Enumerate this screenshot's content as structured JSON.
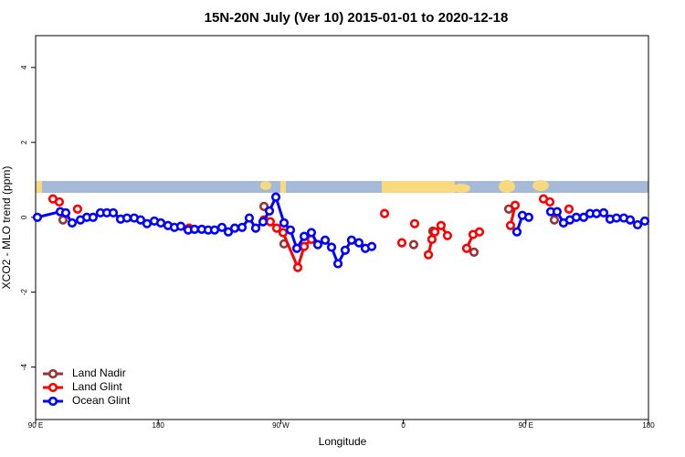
{
  "chart_data": {
    "type": "line",
    "title": "15N-20N July (Ver 10)   2015-01-01 to 2020-12-18",
    "x_label": "Longitude",
    "y_label": "XCO2 - MLO trend (ppm)",
    "xlim": [
      90,
      540
    ],
    "ylim": [
      -5.4,
      4.85
    ],
    "xticks": [
      {
        "value": 90,
        "label": "90 E"
      },
      {
        "value": 180,
        "label": "180"
      },
      {
        "value": 270,
        "label": "90 W"
      },
      {
        "value": 360,
        "label": "0"
      },
      {
        "value": 450,
        "label": "90 E"
      },
      {
        "value": 540,
        "label": "180"
      }
    ],
    "yticks": [
      -4,
      -2,
      0,
      2,
      4
    ],
    "legend": "bottomleft",
    "series": [
      {
        "name": "Land Nadir",
        "color": "#993333",
        "x": [
          110.1,
          null,
          257.7,
          null,
          272.4,
          null,
          367.6,
          null,
          381.7,
          null,
          411.9,
          null,
          437.4,
          null,
          470.9
        ],
        "values": [
          -0.07,
          null,
          0.29,
          null,
          -0.71,
          null,
          -0.73,
          null,
          -0.37,
          null,
          -0.93,
          null,
          0.22,
          null,
          -0.07
        ]
      },
      {
        "name": "Land Glint",
        "color": "#ff0000",
        "x": [
          102.7,
          107.4,
          null,
          120.8,
          null,
          202.7,
          null,
          257.7,
          262.3,
          267.0,
          271.7,
          282.5,
          287.2,
          292.5,
          null,
          346.2,
          null,
          358.9,
          null,
          368.3,
          null,
          378.4,
          381.0,
          383.1,
          387.7,
          392.4,
          null,
          406.5,
          411.2,
          415.9,
          null,
          438.7,
          442.1,
          null,
          462.9,
          467.6,
          null,
          481.6
        ],
        "values": [
          0.49,
          0.41,
          null,
          0.22,
          null,
          -0.29,
          null,
          -0.07,
          -0.12,
          -0.29,
          -0.41,
          -1.34,
          -0.78,
          -0.59,
          null,
          0.1,
          null,
          -0.68,
          null,
          -0.17,
          null,
          -1.0,
          -0.59,
          -0.39,
          -0.22,
          -0.49,
          null,
          -0.83,
          -0.46,
          -0.39,
          null,
          -0.22,
          0.32,
          null,
          0.49,
          0.41,
          null,
          0.22
        ]
      },
      {
        "name": "Ocean Glint",
        "color": "#0000ff",
        "x": [
          91.3,
          108.1,
          112.1,
          116.8,
          122.9,
          127.6,
          132.2,
          137.6,
          142.3,
          147.0,
          152.4,
          157.1,
          162.4,
          167.1,
          171.8,
          177.2,
          181.9,
          187.2,
          191.9,
          196.6,
          202.0,
          206.7,
          212.0,
          216.7,
          221.4,
          226.8,
          231.5,
          236.2,
          241.6,
          246.9,
          251.6,
          257.0,
          261.7,
          266.4,
          272.4,
          277.1,
          281.8,
          287.2,
          292.5,
          297.2,
          302.6,
          307.3,
          312.0,
          317.3,
          322.0,
          327.4,
          332.1,
          336.8,
          null,
          443.4,
          447.4,
          452.1,
          null,
          468.2,
          472.9,
          477.6,
          482.3,
          487.0,
          492.4,
          497.1,
          501.8,
          507.1,
          511.8,
          516.5,
          521.9,
          526.6,
          532.0,
          537.3
        ],
        "values": [
          0.0,
          0.15,
          0.12,
          -0.15,
          -0.07,
          0.0,
          0.0,
          0.12,
          0.12,
          0.12,
          -0.05,
          -0.02,
          -0.02,
          -0.07,
          -0.17,
          -0.1,
          -0.15,
          -0.22,
          -0.27,
          -0.24,
          -0.34,
          -0.32,
          -0.32,
          -0.34,
          -0.34,
          -0.27,
          -0.39,
          -0.29,
          -0.27,
          -0.02,
          -0.29,
          -0.12,
          0.17,
          0.54,
          -0.15,
          -0.34,
          -0.83,
          -0.51,
          -0.41,
          -0.73,
          -0.61,
          -0.8,
          -1.24,
          -0.88,
          -0.61,
          -0.68,
          -0.83,
          -0.78,
          null,
          -0.39,
          0.05,
          0.0,
          null,
          0.15,
          0.15,
          -0.15,
          -0.07,
          0.0,
          0.0,
          0.1,
          0.1,
          0.12,
          -0.05,
          -0.02,
          -0.02,
          -0.07,
          -0.2,
          -0.1
        ]
      }
    ]
  }
}
